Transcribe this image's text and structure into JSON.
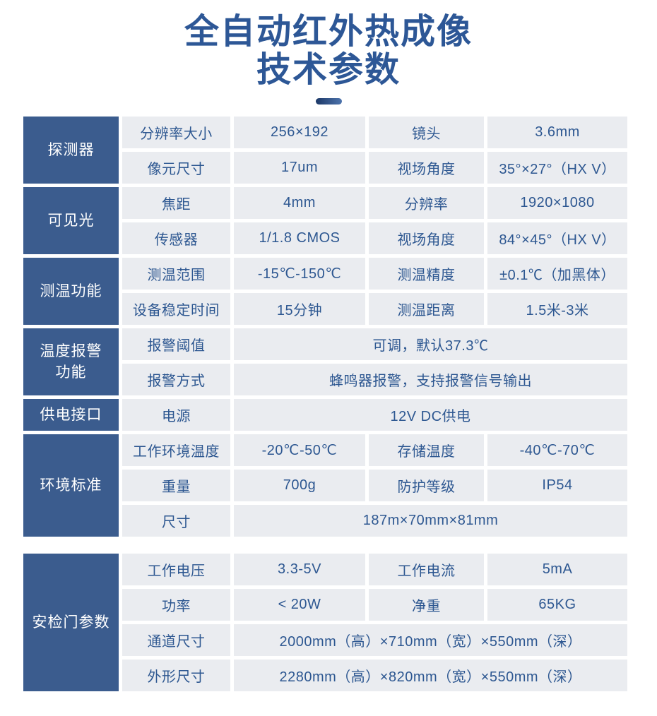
{
  "page_title": {
    "line1": "全自动红外热成像",
    "line2": "技术参数"
  },
  "colors": {
    "accent_blue": "#3b5c8e",
    "cell_bg": "#eaecf0",
    "cell_text": "#2d5791",
    "title_text": "#2d5796",
    "group_text": "#ffffff"
  },
  "spec_table": {
    "groups": [
      {
        "label": "探测器"
      },
      {
        "label": "可见光"
      },
      {
        "label": "测温功能"
      },
      {
        "label": "温度报警\n功能"
      },
      {
        "label": "供电接口"
      },
      {
        "label": "环境标准"
      }
    ],
    "rows": [
      {
        "param1": "分辨率大小",
        "value1": "256×192",
        "param2": "镜头",
        "value2": "3.6mm"
      },
      {
        "param1": "像元尺寸",
        "value1": "17um",
        "param2": "视场角度",
        "value2": "35°×27°（HX V）"
      },
      {
        "param1": "焦距",
        "value1": "4mm",
        "param2": "分辨率",
        "value2": "1920×1080"
      },
      {
        "param1": "传感器",
        "value1": "1/1.8 CMOS",
        "param2": "视场角度",
        "value2": "84°×45°（HX V）"
      },
      {
        "param1": "测温范围",
        "value1": "-15℃-150℃",
        "param2": "测温精度",
        "value2": "±0.1℃（加黑体）"
      },
      {
        "param1": "设备稳定时间",
        "value1": "15分钟",
        "param2": "测温距离",
        "value2": "1.5米-3米"
      },
      {
        "param1": "报警阈值",
        "value_span": "可调，默认37.3℃"
      },
      {
        "param1": "报警方式",
        "value_span": "蜂鸣器报警，支持报警信号输出"
      },
      {
        "param1": "电源",
        "value_span": "12V DC供电"
      },
      {
        "param1": "工作环境温度",
        "value1": "-20℃-50℃",
        "param2": "存储温度",
        "value2": "-40℃-70℃"
      },
      {
        "param1": "重量",
        "value1": "700g",
        "param2": "防护等级",
        "value2": "IP54"
      },
      {
        "param1": "尺寸",
        "value_span": "187m×70mm×81mm"
      }
    ]
  },
  "gate_table": {
    "group_label": "安检门参数",
    "rows": [
      {
        "param1": "工作电压",
        "value1": "3.3-5V",
        "param2": "工作电流",
        "value2": "5mA"
      },
      {
        "param1": "功率",
        "value1": "< 20W",
        "param2": "净重",
        "value2": "65KG"
      },
      {
        "param1": "通道尺寸",
        "value_span": "2000mm（高）×710mm（宽）×550mm（深）"
      },
      {
        "param1": "外形尺寸",
        "value_span": "2280mm（高）×820mm（宽）×550mm（深）"
      }
    ]
  }
}
